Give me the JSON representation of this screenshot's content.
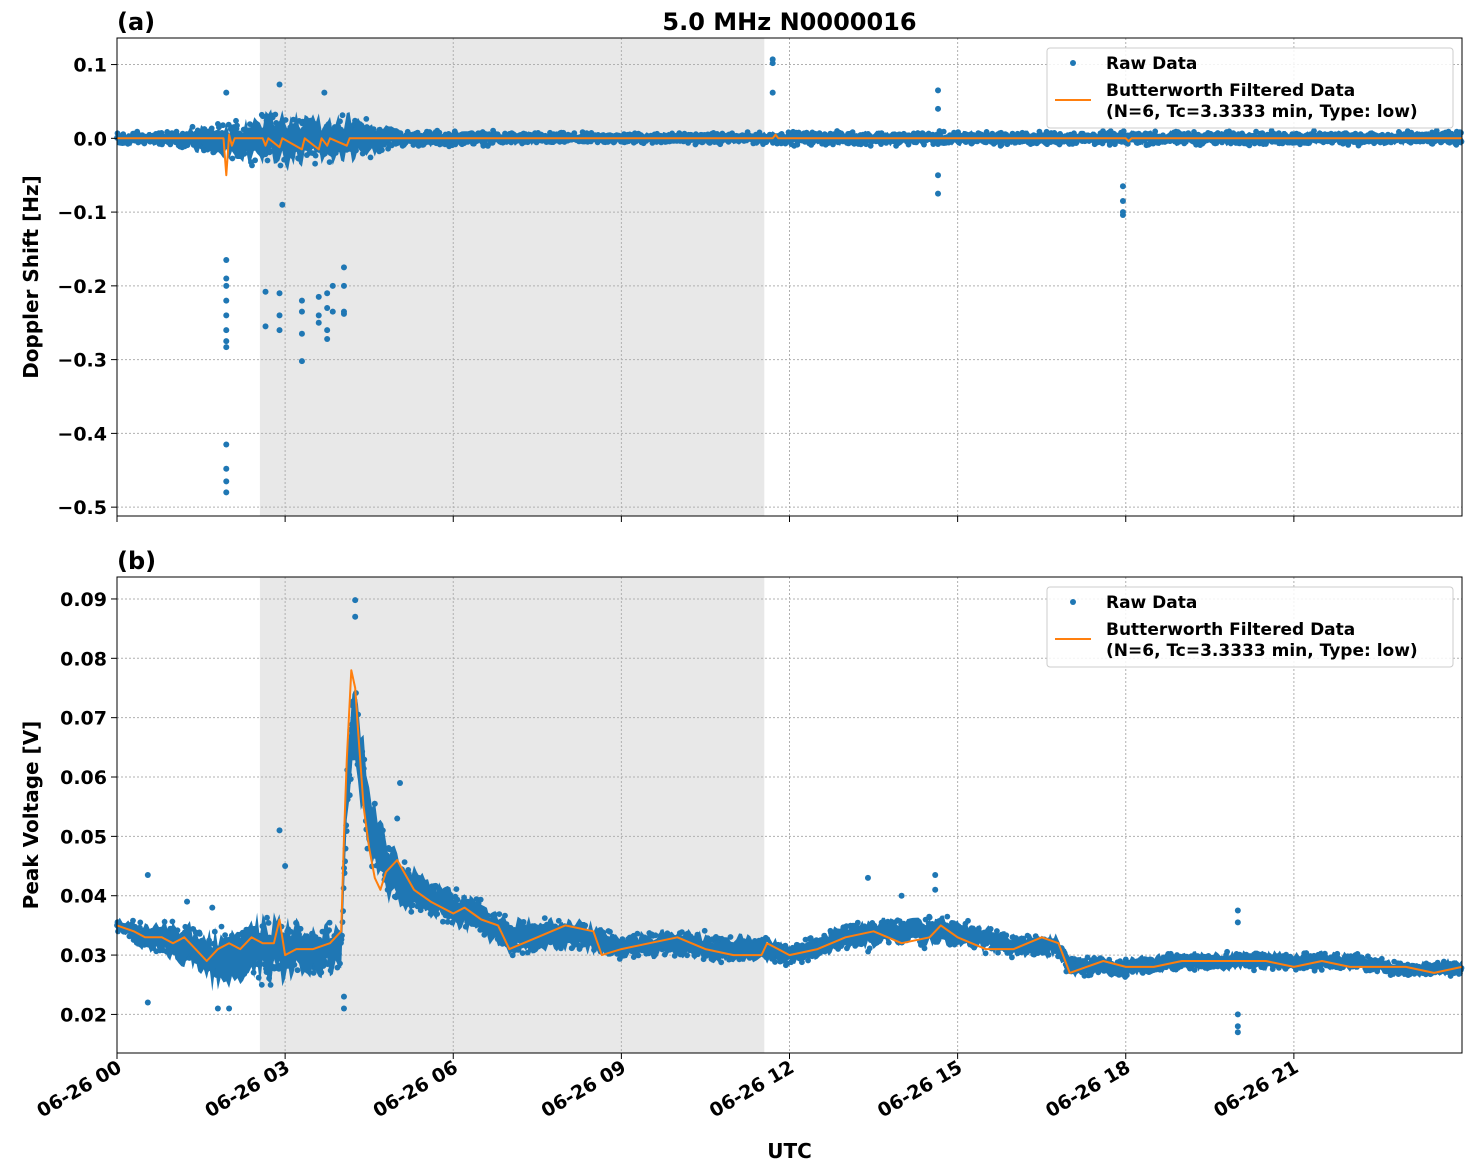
{
  "chart_data": [
    {
      "type": "scatter",
      "panel_label": "(a)",
      "title": "5.0 MHz N0000016",
      "xlabel": "",
      "ylabel": "Doppler Shift [Hz]",
      "ylim": [
        -0.512,
        0.136
      ],
      "yticks": [
        0.1,
        0.0,
        -0.1,
        -0.2,
        -0.3,
        -0.4,
        -0.5
      ],
      "ytick_labels": [
        "0.1",
        "0.0",
        "−0.1",
        "−0.2",
        "−0.3",
        "−0.4",
        "−0.5"
      ],
      "xlim_hours": [
        0,
        24
      ],
      "shaded_region_hours": [
        2.55,
        11.55
      ],
      "grid": true,
      "legend_placement": "top-right",
      "legend": [
        {
          "label": "Raw Data",
          "marker": "dot"
        },
        {
          "label": "Butterworth Filtered Data\n(N=6, Tc=3.3333 min, Type: low)",
          "marker": "line"
        }
      ],
      "series": [
        {
          "name": "Raw Data",
          "color": "#1f77b4",
          "band": [
            [
              0,
              0.012,
              -0.012
            ],
            [
              1,
              0.012,
              -0.012
            ],
            [
              1.8,
              0.025,
              -0.03
            ],
            [
              2.5,
              0.04,
              -0.04
            ],
            [
              3.0,
              0.05,
              -0.05
            ],
            [
              3.5,
              0.04,
              -0.04
            ],
            [
              4.2,
              0.04,
              -0.04
            ],
            [
              5,
              0.015,
              -0.015
            ],
            [
              8,
              0.01,
              -0.01
            ],
            [
              11.5,
              0.01,
              -0.01
            ],
            [
              12,
              0.012,
              -0.012
            ],
            [
              15,
              0.012,
              -0.012
            ],
            [
              24,
              0.012,
              -0.012
            ]
          ],
          "outliers": [
            [
              1.95,
              -0.165
            ],
            [
              1.95,
              -0.19
            ],
            [
              1.95,
              -0.2
            ],
            [
              1.95,
              -0.22
            ],
            [
              1.95,
              -0.24
            ],
            [
              1.95,
              -0.26
            ],
            [
              1.95,
              -0.275
            ],
            [
              1.95,
              -0.283
            ],
            [
              1.95,
              -0.415
            ],
            [
              1.95,
              -0.448
            ],
            [
              1.95,
              -0.465
            ],
            [
              1.95,
              -0.48
            ],
            [
              1.95,
              0.062
            ],
            [
              2.65,
              -0.208
            ],
            [
              2.65,
              -0.255
            ],
            [
              2.9,
              -0.21
            ],
            [
              2.9,
              -0.24
            ],
            [
              2.9,
              -0.26
            ],
            [
              3.3,
              -0.22
            ],
            [
              3.3,
              -0.235
            ],
            [
              3.3,
              -0.302
            ],
            [
              3.3,
              -0.265
            ],
            [
              3.6,
              -0.215
            ],
            [
              3.6,
              -0.24
            ],
            [
              3.6,
              -0.25
            ],
            [
              3.75,
              -0.21
            ],
            [
              3.75,
              -0.23
            ],
            [
              3.75,
              -0.26
            ],
            [
              3.75,
              -0.272
            ],
            [
              3.85,
              -0.2
            ],
            [
              3.85,
              -0.235
            ],
            [
              4.05,
              -0.175
            ],
            [
              4.05,
              -0.2
            ],
            [
              4.05,
              -0.235
            ],
            [
              4.05,
              -0.238
            ],
            [
              2.9,
              0.073
            ],
            [
              2.95,
              -0.09
            ],
            [
              3.7,
              0.062
            ],
            [
              11.7,
              0.107
            ],
            [
              11.7,
              0.102
            ],
            [
              11.7,
              0.062
            ],
            [
              14.65,
              0.065
            ],
            [
              14.65,
              0.04
            ],
            [
              14.65,
              -0.05
            ],
            [
              14.65,
              -0.075
            ],
            [
              17.95,
              -0.065
            ],
            [
              17.95,
              -0.085
            ],
            [
              17.95,
              -0.1
            ],
            [
              17.95,
              -0.104
            ]
          ]
        },
        {
          "name": "Butterworth Filtered Data (N=6, Tc=3.3333 min, Type: low)",
          "color": "#ff7f0e",
          "points": [
            [
              0,
              0.0
            ],
            [
              1.9,
              0.0
            ],
            [
              1.95,
              -0.05
            ],
            [
              2.0,
              0.005
            ],
            [
              2.05,
              -0.01
            ],
            [
              2.1,
              0.0
            ],
            [
              2.6,
              0.0
            ],
            [
              2.65,
              -0.01
            ],
            [
              2.7,
              0.0
            ],
            [
              2.9,
              -0.012
            ],
            [
              2.95,
              0.0
            ],
            [
              3.3,
              -0.015
            ],
            [
              3.35,
              0.0
            ],
            [
              3.6,
              -0.015
            ],
            [
              3.65,
              0.0
            ],
            [
              3.75,
              -0.01
            ],
            [
              3.8,
              0.0
            ],
            [
              4.1,
              -0.01
            ],
            [
              4.15,
              0.0
            ],
            [
              11.7,
              0.0
            ],
            [
              11.75,
              0.005
            ],
            [
              11.8,
              0.0
            ],
            [
              18.0,
              0.0
            ],
            [
              18.05,
              -0.004
            ],
            [
              18.1,
              0.0
            ],
            [
              24,
              0.0
            ]
          ]
        }
      ]
    },
    {
      "type": "scatter",
      "panel_label": "(b)",
      "title": "",
      "xlabel": "UTC",
      "ylabel": "Peak Voltage [V]",
      "ylim": [
        0.0135,
        0.0937
      ],
      "yticks": [
        0.09,
        0.08,
        0.07,
        0.06,
        0.05,
        0.04,
        0.03,
        0.02
      ],
      "ytick_labels": [
        "0.09",
        "0.08",
        "0.07",
        "0.06",
        "0.05",
        "0.04",
        "0.03",
        "0.02"
      ],
      "xlim_hours": [
        0,
        24
      ],
      "xticks_hours": [
        0,
        3,
        6,
        9,
        12,
        15,
        18,
        21
      ],
      "xtick_labels": [
        "06-26 00",
        "06-26 03",
        "06-26 06",
        "06-26 09",
        "06-26 12",
        "06-26 15",
        "06-26 18",
        "06-26 21"
      ],
      "shaded_region_hours": [
        2.55,
        11.55
      ],
      "grid": true,
      "legend_placement": "top-right",
      "legend": [
        {
          "label": "Raw Data",
          "marker": "dot"
        },
        {
          "label": "Butterworth Filtered Data\n(N=6, Tc=3.3333 min, Type: low)",
          "marker": "line"
        }
      ],
      "series": [
        {
          "name": "Raw Data",
          "color": "#1f77b4",
          "band": [
            [
              0,
              0.0365,
              0.034
            ],
            [
              0.5,
              0.036,
              0.03
            ],
            [
              1.0,
              0.037,
              0.028
            ],
            [
              1.5,
              0.036,
              0.026
            ],
            [
              1.7,
              0.035,
              0.023
            ],
            [
              2.0,
              0.037,
              0.023
            ],
            [
              2.5,
              0.038,
              0.024
            ],
            [
              3.0,
              0.038,
              0.024
            ],
            [
              3.5,
              0.036,
              0.025
            ],
            [
              4.0,
              0.037,
              0.026
            ],
            [
              4.1,
              0.065,
              0.045
            ],
            [
              4.2,
              0.08,
              0.06
            ],
            [
              4.3,
              0.078,
              0.055
            ],
            [
              4.5,
              0.06,
              0.042
            ],
            [
              4.8,
              0.052,
              0.038
            ],
            [
              5.2,
              0.047,
              0.036
            ],
            [
              5.8,
              0.043,
              0.035
            ],
            [
              6.5,
              0.04,
              0.032
            ],
            [
              7.0,
              0.037,
              0.029
            ],
            [
              8.0,
              0.037,
              0.03
            ],
            [
              8.6,
              0.036,
              0.029
            ],
            [
              9.0,
              0.034,
              0.029
            ],
            [
              10.0,
              0.035,
              0.029
            ],
            [
              11.0,
              0.034,
              0.028
            ],
            [
              11.6,
              0.034,
              0.028
            ],
            [
              12.0,
              0.032,
              0.028
            ],
            [
              13.0,
              0.036,
              0.03
            ],
            [
              14.0,
              0.037,
              0.031
            ],
            [
              15.0,
              0.037,
              0.031
            ],
            [
              16.0,
              0.034,
              0.029
            ],
            [
              16.8,
              0.034,
              0.029
            ],
            [
              17.0,
              0.03,
              0.026
            ],
            [
              18.0,
              0.03,
              0.026
            ],
            [
              19.0,
              0.031,
              0.027
            ],
            [
              20.0,
              0.031,
              0.027
            ],
            [
              21.0,
              0.031,
              0.027
            ],
            [
              22.0,
              0.031,
              0.027
            ],
            [
              23.0,
              0.029,
              0.026
            ],
            [
              24,
              0.03,
              0.026
            ]
          ],
          "outliers": [
            [
              0.55,
              0.0435
            ],
            [
              0.55,
              0.022
            ],
            [
              1.25,
              0.039
            ],
            [
              1.7,
              0.038
            ],
            [
              1.8,
              0.021
            ],
            [
              2.0,
              0.021
            ],
            [
              2.9,
              0.051
            ],
            [
              3.0,
              0.045
            ],
            [
              4.05,
              0.021
            ],
            [
              4.05,
              0.023
            ],
            [
              4.25,
              0.0898
            ],
            [
              4.25,
              0.087
            ],
            [
              4.6,
              0.0555
            ],
            [
              5.05,
              0.059
            ],
            [
              5.0,
              0.053
            ],
            [
              13.4,
              0.043
            ],
            [
              14.0,
              0.04
            ],
            [
              14.6,
              0.0435
            ],
            [
              14.6,
              0.041
            ],
            [
              20.0,
              0.0375
            ],
            [
              20.0,
              0.0355
            ],
            [
              20.0,
              0.018
            ],
            [
              20.0,
              0.017
            ],
            [
              20.0,
              0.02
            ]
          ]
        },
        {
          "name": "Butterworth Filtered Data (N=6, Tc=3.3333 min, Type: low)",
          "color": "#ff7f0e",
          "points": [
            [
              0,
              0.035
            ],
            [
              0.3,
              0.034
            ],
            [
              0.5,
              0.033
            ],
            [
              0.8,
              0.033
            ],
            [
              1.0,
              0.032
            ],
            [
              1.2,
              0.033
            ],
            [
              1.4,
              0.031
            ],
            [
              1.6,
              0.029
            ],
            [
              1.8,
              0.031
            ],
            [
              2.0,
              0.032
            ],
            [
              2.2,
              0.031
            ],
            [
              2.4,
              0.033
            ],
            [
              2.6,
              0.032
            ],
            [
              2.8,
              0.032
            ],
            [
              2.9,
              0.036
            ],
            [
              3.0,
              0.03
            ],
            [
              3.2,
              0.031
            ],
            [
              3.5,
              0.031
            ],
            [
              3.8,
              0.032
            ],
            [
              4.0,
              0.034
            ],
            [
              4.05,
              0.05
            ],
            [
              4.1,
              0.063
            ],
            [
              4.18,
              0.078
            ],
            [
              4.25,
              0.075
            ],
            [
              4.3,
              0.068
            ],
            [
              4.4,
              0.055
            ],
            [
              4.5,
              0.048
            ],
            [
              4.6,
              0.043
            ],
            [
              4.7,
              0.041
            ],
            [
              4.8,
              0.044
            ],
            [
              5.0,
              0.046
            ],
            [
              5.3,
              0.041
            ],
            [
              5.6,
              0.039
            ],
            [
              6.0,
              0.037
            ],
            [
              6.2,
              0.038
            ],
            [
              6.5,
              0.036
            ],
            [
              6.8,
              0.035
            ],
            [
              7.0,
              0.031
            ],
            [
              7.5,
              0.033
            ],
            [
              8.0,
              0.035
            ],
            [
              8.5,
              0.034
            ],
            [
              8.65,
              0.03
            ],
            [
              9.0,
              0.031
            ],
            [
              9.5,
              0.032
            ],
            [
              10.0,
              0.033
            ],
            [
              10.5,
              0.031
            ],
            [
              11.0,
              0.03
            ],
            [
              11.5,
              0.03
            ],
            [
              11.6,
              0.032
            ],
            [
              12.0,
              0.03
            ],
            [
              12.5,
              0.031
            ],
            [
              13.0,
              0.033
            ],
            [
              13.5,
              0.034
            ],
            [
              14.0,
              0.032
            ],
            [
              14.5,
              0.033
            ],
            [
              14.7,
              0.035
            ],
            [
              15.0,
              0.033
            ],
            [
              15.5,
              0.031
            ],
            [
              16.0,
              0.031
            ],
            [
              16.5,
              0.033
            ],
            [
              16.8,
              0.032
            ],
            [
              17.0,
              0.027
            ],
            [
              17.3,
              0.028
            ],
            [
              17.6,
              0.029
            ],
            [
              18.0,
              0.028
            ],
            [
              18.5,
              0.028
            ],
            [
              19.0,
              0.029
            ],
            [
              19.5,
              0.029
            ],
            [
              20.0,
              0.029
            ],
            [
              20.5,
              0.029
            ],
            [
              21.0,
              0.028
            ],
            [
              21.5,
              0.029
            ],
            [
              22.0,
              0.028
            ],
            [
              22.5,
              0.028
            ],
            [
              23.0,
              0.028
            ],
            [
              23.5,
              0.027
            ],
            [
              24,
              0.028
            ]
          ]
        }
      ]
    }
  ]
}
